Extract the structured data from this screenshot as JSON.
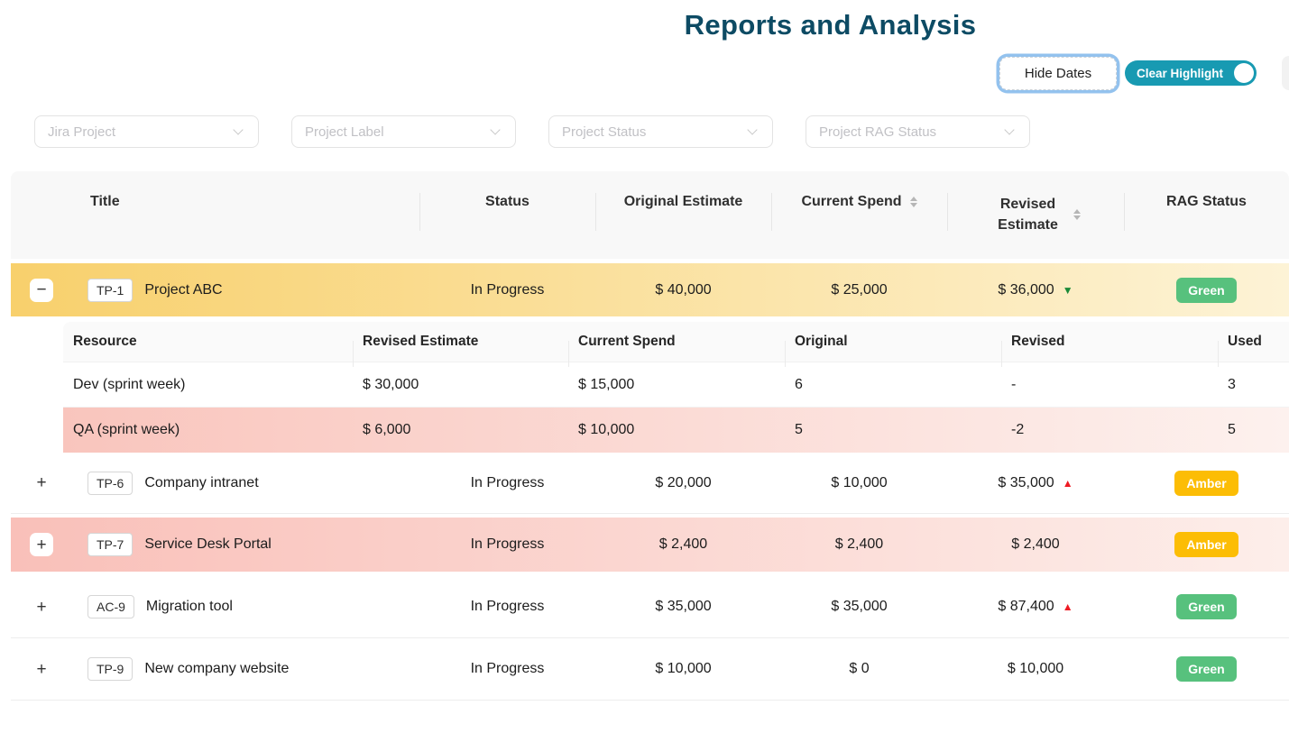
{
  "page": {
    "title": "Reports and Analysis"
  },
  "controls": {
    "hide_dates": "Hide Dates",
    "clear_highlight": "Clear Highlight",
    "clear_highlight_on": true
  },
  "filters": [
    {
      "placeholder": "Jira Project"
    },
    {
      "placeholder": "Project Label"
    },
    {
      "placeholder": "Project Status"
    },
    {
      "placeholder": "Project RAG Status"
    }
  ],
  "table": {
    "headers": {
      "title": "Title",
      "status": "Status",
      "original_estimate": "Original Estimate",
      "current_spend": "Current Spend",
      "revised_estimate": "Revised Estimate",
      "rag_status": "RAG Status"
    },
    "rows": [
      {
        "key": "TP-1",
        "title": "Project ABC",
        "status": "In Progress",
        "original_estimate": "$ 40,000",
        "current_spend": "$ 25,000",
        "revised_estimate": "$ 36,000",
        "trend": "down",
        "trend_icon": "▼",
        "rag": "Green",
        "expanded": true,
        "expander": "−",
        "highlight": "yellow"
      },
      {
        "key": "TP-6",
        "title": "Company intranet",
        "status": "In Progress",
        "original_estimate": "$ 20,000",
        "current_spend": "$ 10,000",
        "revised_estimate": "$ 35,000",
        "trend": "up",
        "trend_icon": "▲",
        "rag": "Amber",
        "expanded": false,
        "expander": "+",
        "highlight": "none"
      },
      {
        "key": "TP-7",
        "title": "Service Desk Portal",
        "status": "In Progress",
        "original_estimate": "$ 2,400",
        "current_spend": "$ 2,400",
        "revised_estimate": "$ 2,400",
        "trend": "none",
        "trend_icon": "",
        "rag": "Amber",
        "expanded": false,
        "expander": "+",
        "highlight": "pink"
      },
      {
        "key": "AC-9",
        "title": "Migration tool",
        "status": "In Progress",
        "original_estimate": "$ 35,000",
        "current_spend": "$ 35,000",
        "revised_estimate": "$ 87,400",
        "trend": "up",
        "trend_icon": "▲",
        "rag": "Green",
        "expanded": false,
        "expander": "+",
        "highlight": "none"
      },
      {
        "key": "TP-9",
        "title": "New company website",
        "status": "In Progress",
        "original_estimate": "$ 10,000",
        "current_spend": "$ 0",
        "revised_estimate": "$ 10,000",
        "trend": "none",
        "trend_icon": "",
        "rag": "Green",
        "expanded": false,
        "expander": "+",
        "highlight": "none"
      }
    ],
    "subtable": {
      "headers": [
        "Resource",
        "Revised Estimate",
        "Current Spend",
        "Original",
        "Revised",
        "Used"
      ],
      "rows": [
        {
          "resource": "Dev (sprint week)",
          "revised_estimate": "$ 30,000",
          "current_spend": "$ 15,000",
          "original": "6",
          "revised": "-",
          "used": "3",
          "highlight": "none"
        },
        {
          "resource": "QA (sprint week)",
          "revised_estimate": "$ 6,000",
          "current_spend": "$ 10,000",
          "original": "5",
          "revised": "-2",
          "used": "5",
          "highlight": "pink"
        }
      ]
    }
  },
  "colors": {
    "title_text": "#0d4b64",
    "accent_teal": "#189ab2",
    "focus_ring_blue": "#93c2ee",
    "rag_green": "#57c17d",
    "rag_amber": "#fcbd05",
    "highlight_yellow_start": "#f8d06c",
    "highlight_yellow_end": "#fdf3d6",
    "highlight_pink_start": "#f9c0b9",
    "highlight_pink_end": "#fdeeea",
    "trend_up_red": "#ee1b24",
    "trend_down_green": "#1a8a38"
  }
}
